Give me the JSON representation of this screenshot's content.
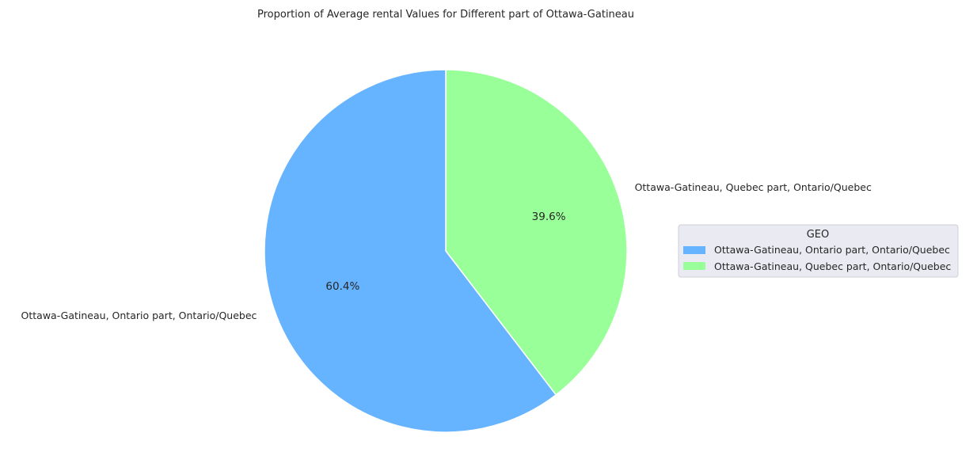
{
  "chart_data": {
    "type": "pie",
    "title": "Proportion of Average rental Values for Different part of Ottawa-Gatineau",
    "slices": [
      {
        "label": "Ottawa-Gatineau, Ontario part, Ontario/Quebec",
        "value": 60.4,
        "pct_label": "60.4%",
        "color": "#66b3ff"
      },
      {
        "label": "Ottawa-Gatineau, Quebec part, Ontario/Quebec",
        "value": 39.6,
        "pct_label": "39.6%",
        "color": "#99ff99"
      }
    ],
    "start_angle": "top (12 o'clock)",
    "direction": "clockwise (Quebec part first)",
    "legend": {
      "title": "GEO",
      "placement": "right",
      "entries": [
        "Ottawa-Gatineau, Ontario part, Ontario/Quebec",
        "Ottawa-Gatineau, Quebec part, Ontario/Quebec"
      ]
    }
  }
}
